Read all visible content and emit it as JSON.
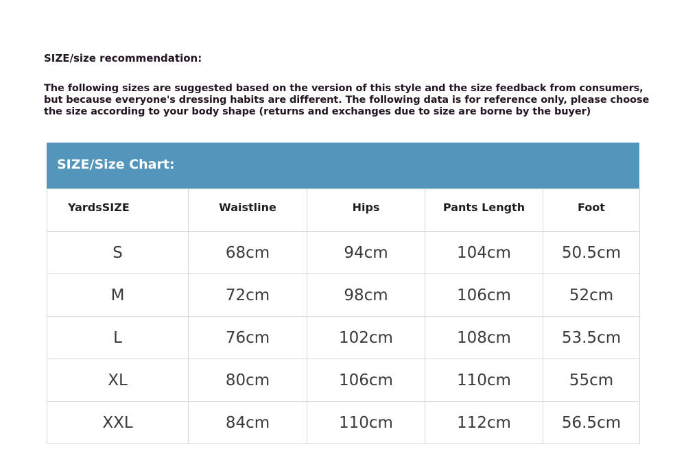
{
  "heading": "SIZE/size recommendation:",
  "intro": "The following sizes are suggested based on the version of this style and the size feedback from consumers, but because everyone's dressing habits are different. The following data is for reference only, please choose the size according to your body shape (returns and exchanges due to size are borne by the buyer)",
  "colors": {
    "header_band": "#5495bb"
  },
  "table": {
    "title": "SIZE/Size Chart:",
    "columns": [
      "YardsSIZE",
      "Waistline",
      "Hips",
      "Pants Length",
      "Foot"
    ],
    "rows": [
      [
        "S",
        "68cm",
        "94cm",
        "104cm",
        "50.5cm"
      ],
      [
        "M",
        "72cm",
        "98cm",
        "106cm",
        "52cm"
      ],
      [
        "L",
        "76cm",
        "102cm",
        "108cm",
        "53.5cm"
      ],
      [
        "XL",
        "80cm",
        "106cm",
        "110cm",
        "55cm"
      ],
      [
        "XXL",
        "84cm",
        "110cm",
        "112cm",
        "56.5cm"
      ]
    ]
  }
}
